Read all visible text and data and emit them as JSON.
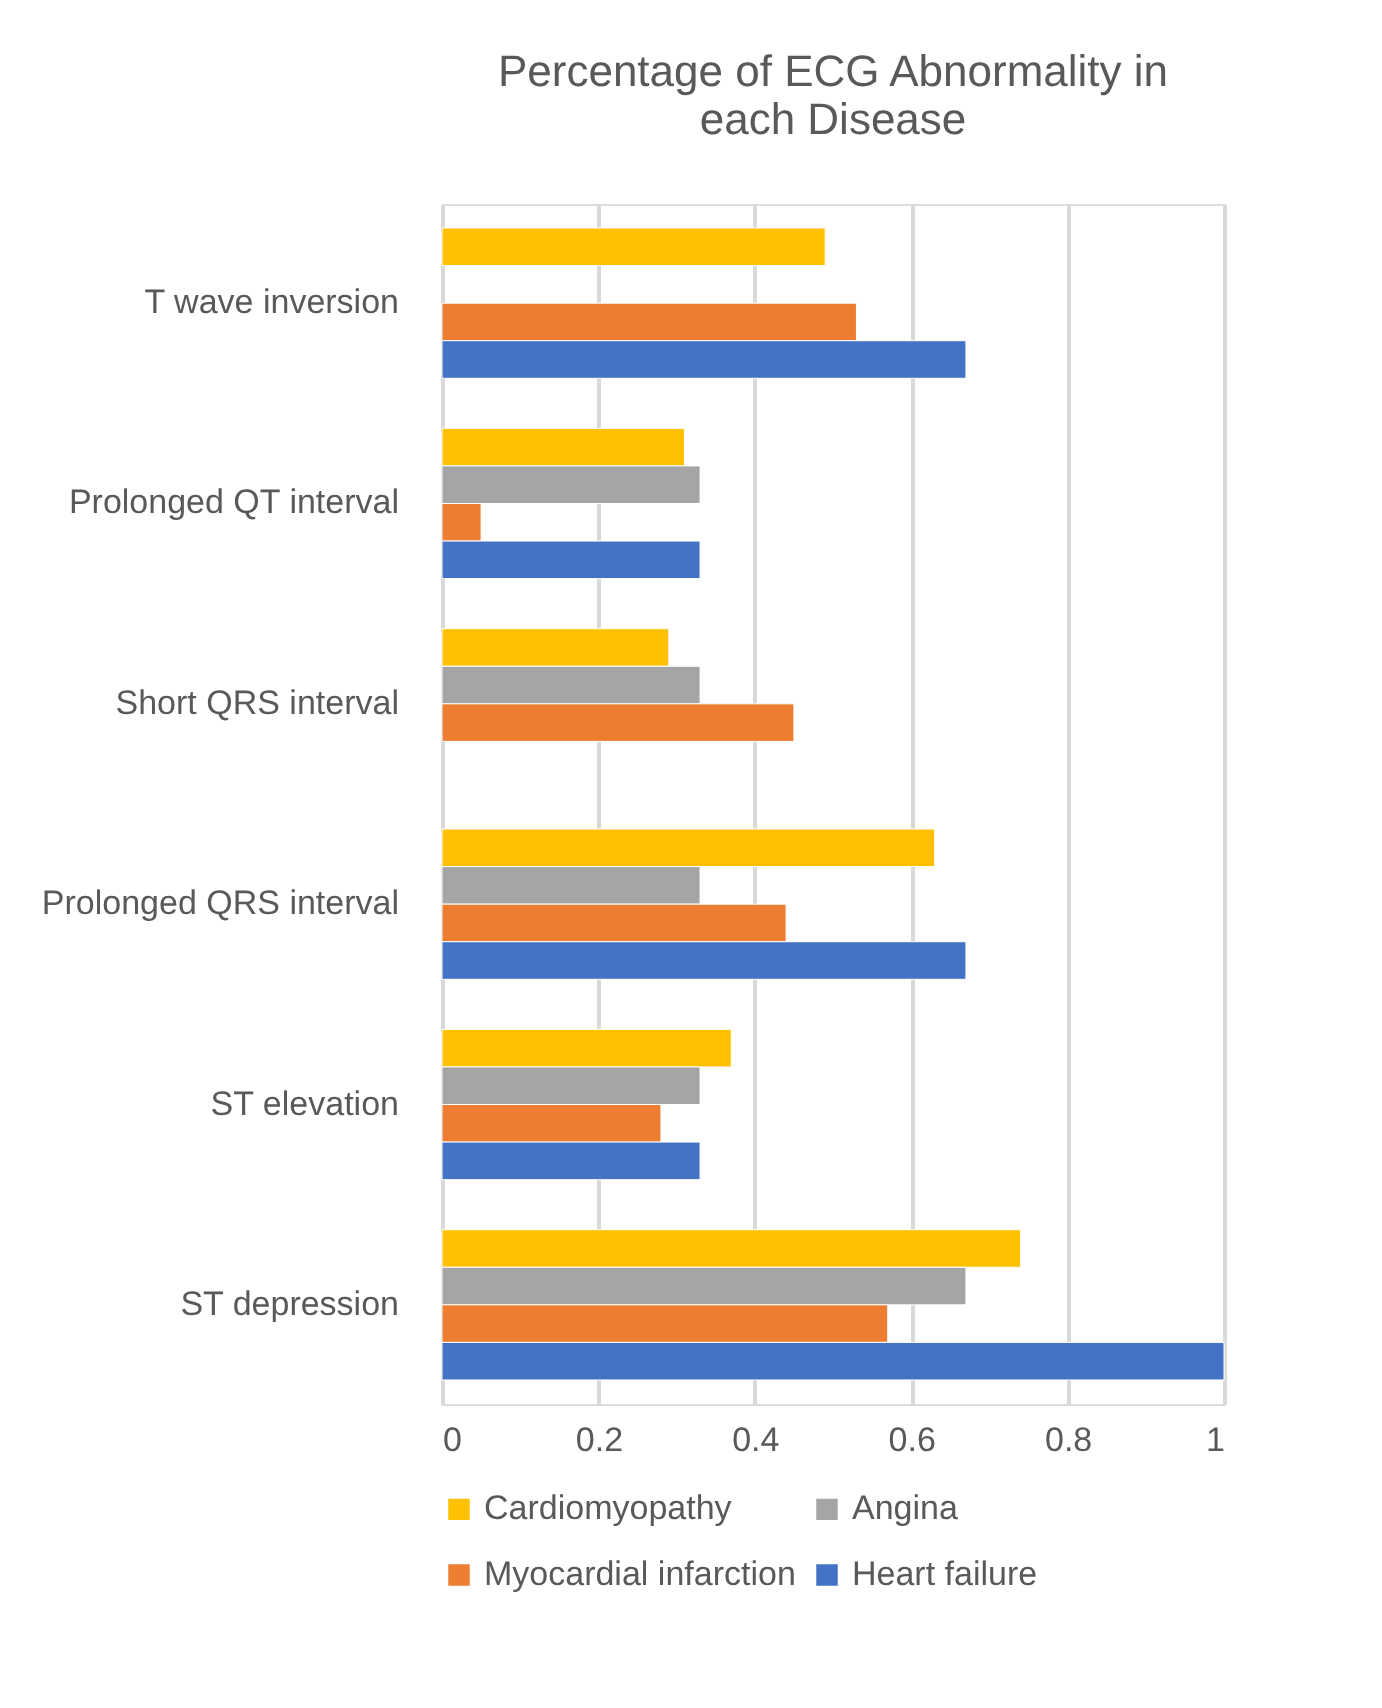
{
  "chart_data": {
    "type": "bar",
    "orientation": "horizontal",
    "title": "Percentage of ECG Abnormality in each Disease",
    "categories": [
      "T wave inversion",
      "Prolonged QT interval",
      "Short QRS interval",
      "Prolonged QRS interval",
      "ST elevation",
      "ST depression"
    ],
    "series": [
      {
        "name": "Cardiomyopathy",
        "color": "#ffc000",
        "values": [
          0.49,
          0.31,
          0.29,
          0.63,
          0.37,
          0.74
        ]
      },
      {
        "name": "Angina",
        "color": "#a5a5a5",
        "values": [
          null,
          0.33,
          0.33,
          0.33,
          0.33,
          0.67
        ]
      },
      {
        "name": "Myocardial infarction",
        "color": "#ed7d31",
        "values": [
          0.53,
          0.05,
          0.45,
          0.44,
          0.28,
          0.57
        ]
      },
      {
        "name": "Heart failure",
        "color": "#4472c4",
        "values": [
          0.67,
          0.33,
          null,
          0.67,
          0.33,
          1.0
        ]
      }
    ],
    "xlim": [
      0,
      1
    ],
    "xticks": [
      0,
      0.2,
      0.4,
      0.6,
      0.8,
      1
    ],
    "grid": "x",
    "legend": "bottom"
  }
}
